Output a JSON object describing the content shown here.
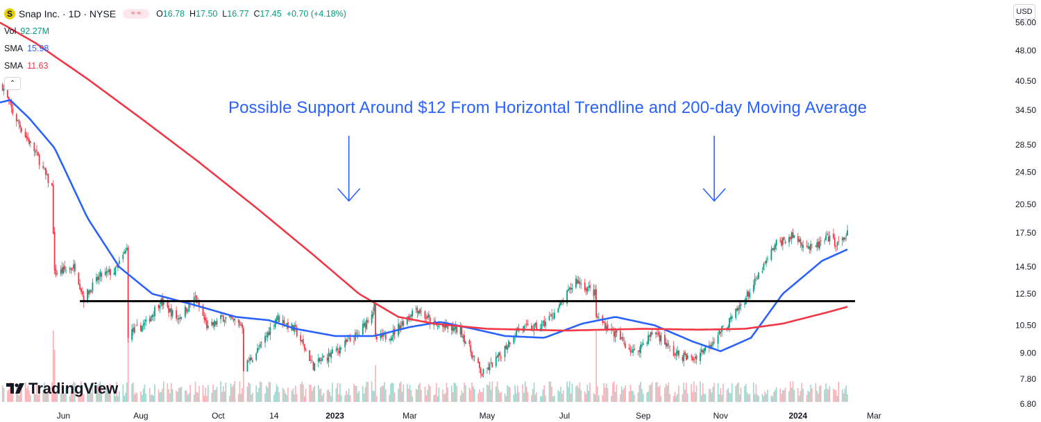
{
  "header": {
    "title": "Snap Inc. · 1D · NYSE",
    "logo_letter": "S",
    "pill": "≈ ≈",
    "ohlc": {
      "o_key": "O",
      "o": "16.78",
      "h_key": "H",
      "h": "17.50",
      "l_key": "L",
      "l": "16.77",
      "c_key": "C",
      "c": "17.45",
      "change": "+0.70 (+4.18%)"
    }
  },
  "indicators": {
    "vol": {
      "label": "Vol",
      "value": "92.27M"
    },
    "sma_fast": {
      "label": "SMA",
      "value": "15.98"
    },
    "sma_slow": {
      "label": "SMA",
      "value": "11.63"
    },
    "collapse": "⌃"
  },
  "currency": "USD",
  "annotation": "Possible Support Around $12 From Horizontal Trendline and 200-day Moving Average",
  "brand": {
    "name": "TradingView"
  },
  "colors": {
    "up": "#089981",
    "down": "#f23645",
    "sma_fast": "#2962ff",
    "sma_slow": "#f23645",
    "annotation": "#2962ff",
    "trendline": "#000000"
  },
  "chart_data": {
    "type": "candlestick",
    "symbol": "Snap Inc.",
    "interval": "1D",
    "exchange": "NYSE",
    "scale": "log",
    "ylim": [
      6.2,
      62
    ],
    "y_ticks": [
      "56.00",
      "48.00",
      "40.50",
      "34.50",
      "28.50",
      "24.50",
      "20.50",
      "17.50",
      "14.50",
      "12.50",
      "10.50",
      "9.00",
      "7.80",
      "6.80"
    ],
    "x_ticks": [
      "Jun",
      "Aug",
      "Oct",
      "14",
      "2023",
      "Mar",
      "May",
      "Jul",
      "Sep",
      "Nov",
      "2024",
      "Mar"
    ],
    "price_path": [
      [
        "2022-04-14",
        39.5
      ],
      [
        "2022-04-22",
        34.0
      ],
      [
        "2022-05-02",
        30.0
      ],
      [
        "2022-05-11",
        27.0
      ],
      [
        "2022-05-18",
        24.0
      ],
      [
        "2022-05-23",
        22.5
      ],
      [
        "2022-05-25",
        14.0
      ],
      [
        "2022-06-10",
        14.5
      ],
      [
        "2022-06-17",
        12.2
      ],
      [
        "2022-06-30",
        13.8
      ],
      [
        "2022-07-12",
        14.2
      ],
      [
        "2022-07-21",
        16.0
      ],
      [
        "2022-07-22",
        10.0
      ],
      [
        "2022-08-05",
        10.6
      ],
      [
        "2022-08-16",
        12.0
      ],
      [
        "2022-08-30",
        10.9
      ],
      [
        "2022-09-13",
        12.2
      ],
      [
        "2022-09-23",
        10.3
      ],
      [
        "2022-10-05",
        11.0
      ],
      [
        "2022-10-20",
        10.5
      ],
      [
        "2022-10-21",
        8.3
      ],
      [
        "2022-11-03",
        9.3
      ],
      [
        "2022-11-16",
        11.0
      ],
      [
        "2022-12-01",
        10.2
      ],
      [
        "2022-12-15",
        8.4
      ],
      [
        "2022-12-30",
        9.0
      ],
      [
        "2023-01-20",
        10.0
      ],
      [
        "2023-02-01",
        11.6
      ],
      [
        "2023-02-02",
        9.7
      ],
      [
        "2023-02-15",
        10.0
      ],
      [
        "2023-03-06",
        11.6
      ],
      [
        "2023-03-20",
        10.5
      ],
      [
        "2023-04-10",
        10.2
      ],
      [
        "2023-04-27",
        8.0
      ],
      [
        "2023-05-10",
        8.8
      ],
      [
        "2023-05-25",
        10.3
      ],
      [
        "2023-06-12",
        10.4
      ],
      [
        "2023-06-27",
        11.6
      ],
      [
        "2023-07-10",
        13.5
      ],
      [
        "2023-07-25",
        12.5
      ],
      [
        "2023-07-26",
        11.0
      ],
      [
        "2023-08-10",
        10.0
      ],
      [
        "2023-08-25",
        9.0
      ],
      [
        "2023-09-10",
        10.2
      ],
      [
        "2023-09-25",
        9.0
      ],
      [
        "2023-10-10",
        8.7
      ],
      [
        "2023-10-25",
        9.6
      ],
      [
        "2023-11-10",
        10.9
      ],
      [
        "2023-11-25",
        12.8
      ],
      [
        "2023-12-15",
        16.5
      ],
      [
        "2023-12-28",
        17.2
      ],
      [
        "2024-01-12",
        16.0
      ],
      [
        "2024-01-25",
        17.0
      ],
      [
        "2024-02-02",
        16.4
      ],
      [
        "2024-02-09",
        17.45
      ]
    ],
    "series": [
      {
        "name": "SMA",
        "value": "15.98",
        "color": "#2962ff",
        "points": [
          [
            "2022-04-12",
            36.0
          ],
          [
            "2022-04-20",
            36.5
          ],
          [
            "2022-05-05",
            33.0
          ],
          [
            "2022-05-25",
            28.0
          ],
          [
            "2022-06-20",
            19.0
          ],
          [
            "2022-07-15",
            14.5
          ],
          [
            "2022-08-10",
            12.5
          ],
          [
            "2022-09-10",
            11.8
          ],
          [
            "2022-10-15",
            11.0
          ],
          [
            "2022-11-10",
            10.8
          ],
          [
            "2022-12-01",
            10.3
          ],
          [
            "2023-01-01",
            9.9
          ],
          [
            "2023-02-01",
            9.9
          ],
          [
            "2023-03-01",
            10.4
          ],
          [
            "2023-03-25",
            10.7
          ],
          [
            "2023-04-20",
            10.3
          ],
          [
            "2023-05-15",
            9.9
          ],
          [
            "2023-06-15",
            9.8
          ],
          [
            "2023-07-15",
            10.6
          ],
          [
            "2023-08-10",
            11.0
          ],
          [
            "2023-09-10",
            10.5
          ],
          [
            "2023-10-10",
            9.6
          ],
          [
            "2023-11-01",
            9.1
          ],
          [
            "2023-11-25",
            9.8
          ],
          [
            "2023-12-20",
            12.5
          ],
          [
            "2024-01-20",
            15.0
          ],
          [
            "2024-02-09",
            15.98
          ]
        ]
      },
      {
        "name": "SMA",
        "value": "11.63",
        "color": "#f23645",
        "points": [
          [
            "2022-04-12",
            56.0
          ],
          [
            "2022-05-10",
            50.0
          ],
          [
            "2022-06-20",
            41.0
          ],
          [
            "2022-08-01",
            33.0
          ],
          [
            "2022-09-15",
            26.0
          ],
          [
            "2022-11-01",
            20.0
          ],
          [
            "2022-12-15",
            15.5
          ],
          [
            "2023-01-20",
            12.5
          ],
          [
            "2023-02-20",
            11.0
          ],
          [
            "2023-03-20",
            10.6
          ],
          [
            "2023-05-01",
            10.3
          ],
          [
            "2023-07-01",
            10.2
          ],
          [
            "2023-09-01",
            10.3
          ],
          [
            "2023-10-15",
            10.25
          ],
          [
            "2023-11-20",
            10.3
          ],
          [
            "2023-12-20",
            10.6
          ],
          [
            "2024-01-20",
            11.2
          ],
          [
            "2024-02-09",
            11.63
          ]
        ]
      }
    ],
    "trendline": {
      "y": 12.0,
      "x_start": "2022-06-14",
      "x_end": "2024-02-15"
    },
    "arrows": [
      {
        "x": "2023-01-12"
      },
      {
        "x": "2023-10-27"
      }
    ]
  }
}
